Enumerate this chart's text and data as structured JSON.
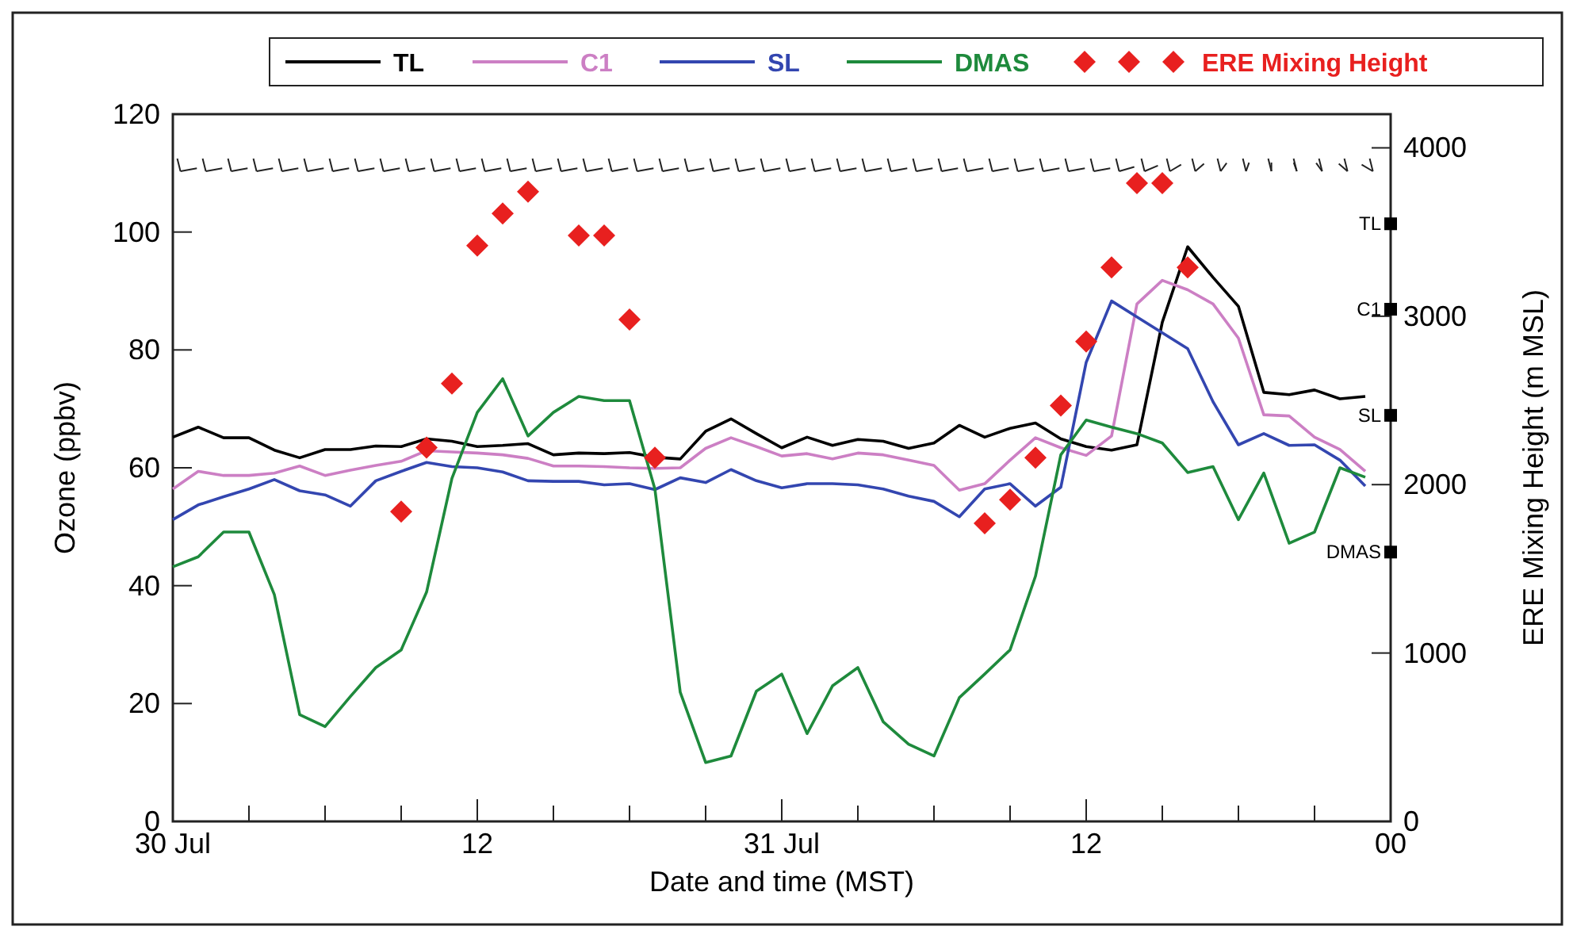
{
  "chart_data": {
    "type": "line",
    "xlabel": "Date and time (MST)",
    "ylabel": "Ozone (ppbv)",
    "y2label": "ERE Mixing Height (m MSL)",
    "categories": [
      "30 Jul",
      null,
      null,
      null,
      null,
      null,
      null,
      null,
      null,
      null,
      null,
      null,
      "12",
      null,
      null,
      null,
      null,
      null,
      null,
      null,
      null,
      null,
      null,
      null,
      "31 Jul",
      null,
      null,
      null,
      null,
      null,
      null,
      null,
      null,
      null,
      null,
      null,
      "12",
      null,
      null,
      null,
      null,
      null,
      null,
      null,
      null,
      null,
      null,
      null,
      "00"
    ],
    "series": [
      {
        "name": "TL",
        "color": "#000000",
        "values": [
          65.2,
          66.9,
          65.1,
          65.1,
          63.0,
          61.7,
          63.1,
          63.1,
          63.7,
          63.6,
          64.9,
          64.5,
          63.6,
          63.8,
          64.1,
          62.2,
          62.5,
          62.4,
          62.6,
          61.8,
          61.5,
          66.2,
          68.3,
          65.8,
          63.4,
          65.2,
          63.8,
          64.8,
          64.5,
          63.3,
          64.2,
          67.2,
          65.2,
          66.7,
          67.6,
          64.9,
          63.6,
          63.0,
          63.9,
          84.7,
          97.5,
          92.3,
          87.4,
          72.8,
          72.4,
          73.2,
          71.7,
          72.1,
          null
        ]
      },
      {
        "name": "C1",
        "color": "#cc7fc4",
        "values": [
          56.4,
          59.4,
          58.7,
          58.7,
          59.1,
          60.3,
          58.7,
          59.6,
          60.4,
          61.1,
          62.9,
          62.7,
          62.5,
          62.2,
          61.6,
          60.3,
          60.3,
          60.2,
          60.0,
          59.9,
          60.0,
          63.3,
          65.1,
          63.6,
          62.0,
          62.4,
          61.5,
          62.5,
          62.2,
          61.3,
          60.4,
          56.2,
          57.3,
          61.3,
          65.1,
          63.4,
          62.1,
          65.4,
          87.8,
          91.8,
          90.2,
          87.8,
          82.0,
          69.0,
          68.8,
          65.2,
          63.1,
          59.4,
          null
        ]
      },
      {
        "name": "SL",
        "color": "#3346b0",
        "values": [
          51.2,
          53.7,
          55.1,
          56.4,
          58.0,
          56.1,
          55.4,
          53.5,
          57.8,
          59.4,
          60.9,
          60.2,
          60.0,
          59.3,
          57.8,
          57.7,
          57.7,
          57.1,
          57.3,
          56.3,
          58.3,
          57.5,
          59.7,
          57.8,
          56.6,
          57.3,
          57.3,
          57.1,
          56.4,
          55.2,
          54.3,
          51.7,
          56.4,
          57.3,
          53.5,
          56.7,
          77.9,
          88.3,
          85.6,
          82.9,
          80.2,
          71.2,
          63.9,
          65.8,
          63.8,
          63.9,
          61.3,
          56.9,
          null
        ]
      },
      {
        "name": "DMAS",
        "color": "#1e8a3c",
        "values": [
          43.2,
          44.9,
          49.1,
          49.1,
          38.5,
          18.1,
          16.1,
          21.2,
          26.1,
          29.1,
          38.9,
          58.2,
          69.4,
          75.1,
          65.4,
          69.4,
          72.1,
          71.4,
          71.4,
          56.4,
          21.9,
          10.0,
          11.1,
          22.1,
          25.0,
          14.9,
          23.0,
          26.1,
          16.9,
          13.1,
          11.1,
          21.0,
          25.0,
          29.1,
          41.6,
          62.2,
          68.1,
          66.9,
          65.8,
          64.2,
          59.2,
          60.2,
          51.2,
          59.1,
          47.2,
          49.1,
          60.0,
          58.4,
          null
        ]
      },
      {
        "name": "ERE Mixing Height",
        "type": "scatter",
        "axis": "y2",
        "marker": "diamond",
        "color": "#e8201f",
        "values": [
          null,
          null,
          null,
          null,
          null,
          null,
          null,
          null,
          null,
          1840,
          2220,
          2600,
          3420,
          3610,
          3740,
          null,
          3480,
          3480,
          2980,
          2160,
          null,
          null,
          null,
          null,
          null,
          null,
          null,
          null,
          null,
          null,
          null,
          null,
          1770,
          1910,
          2160,
          2470,
          2850,
          3290,
          3790,
          3790,
          3290,
          null,
          null,
          null,
          null,
          null,
          null,
          null,
          null
        ]
      }
    ],
    "ylim": [
      0,
      120
    ],
    "yticks": [
      0,
      20,
      40,
      60,
      80,
      100,
      120
    ],
    "y2lim": [
      0,
      4200
    ],
    "y2ticks": [
      0,
      1000,
      2000,
      3000,
      4000
    ],
    "legend": "top",
    "grid": false,
    "marker": "none",
    "line_style": "solid",
    "annotations": [
      {
        "text": "TL",
        "x": "00",
        "y": 101.4
      },
      {
        "text": "C1",
        "x": "00",
        "y": 86.9
      },
      {
        "text": "SL",
        "x": "00",
        "y": 68.9
      },
      {
        "text": "DMAS",
        "x": "00",
        "y": 45.7
      }
    ]
  }
}
